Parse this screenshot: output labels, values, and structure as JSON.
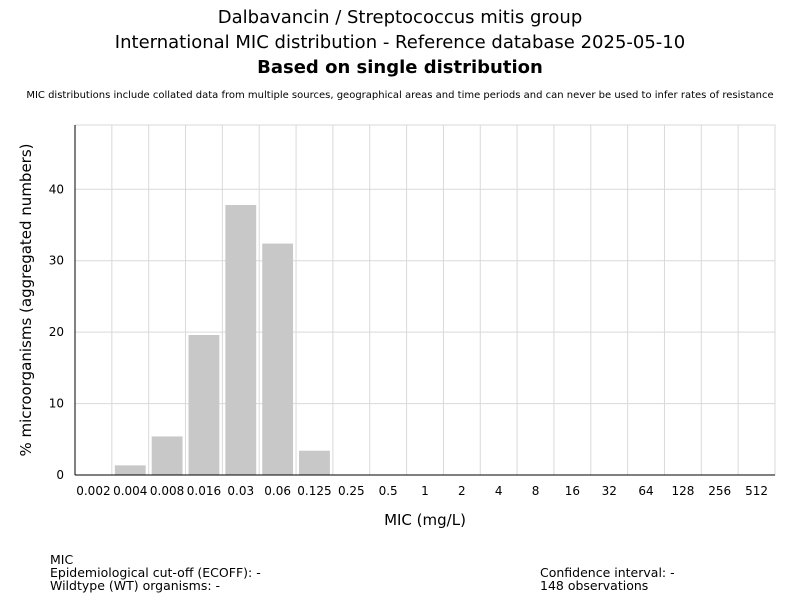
{
  "header": {
    "title_line1": "Dalbavancin / Streptococcus mitis group",
    "title_line2": "International MIC distribution - Reference database 2025-05-10",
    "title_line3": "Based on single distribution",
    "disclaimer": "MIC distributions include collated data from multiple sources, geographical areas and time periods and can never be used to infer rates of resistance"
  },
  "chart_data": {
    "type": "bar",
    "categories": [
      "0.002",
      "0.004",
      "0.008",
      "0.016",
      "0.03",
      "0.06",
      "0.125",
      "0.25",
      "0.5",
      "1",
      "2",
      "4",
      "8",
      "16",
      "32",
      "64",
      "128",
      "256",
      "512"
    ],
    "values": [
      0,
      1.35,
      5.4,
      19.6,
      37.8,
      32.4,
      3.4,
      0,
      0,
      0,
      0,
      0,
      0,
      0,
      0,
      0,
      0,
      0,
      0
    ],
    "xlabel": "MIC (mg/L)",
    "ylabel": "% microorganisms (aggregated numbers)",
    "ylim": [
      0,
      49
    ],
    "yticks": [
      0,
      10,
      20,
      30,
      40
    ],
    "grid": true,
    "bar_color": "#c8c8c8"
  },
  "footer": {
    "mic_label": "MIC",
    "ecoff": "Epidemiological cut-off (ECOFF): -",
    "wildtype": "Wildtype (WT) organisms:  -",
    "confidence": "Confidence interval: -",
    "observations": "148 observations"
  }
}
